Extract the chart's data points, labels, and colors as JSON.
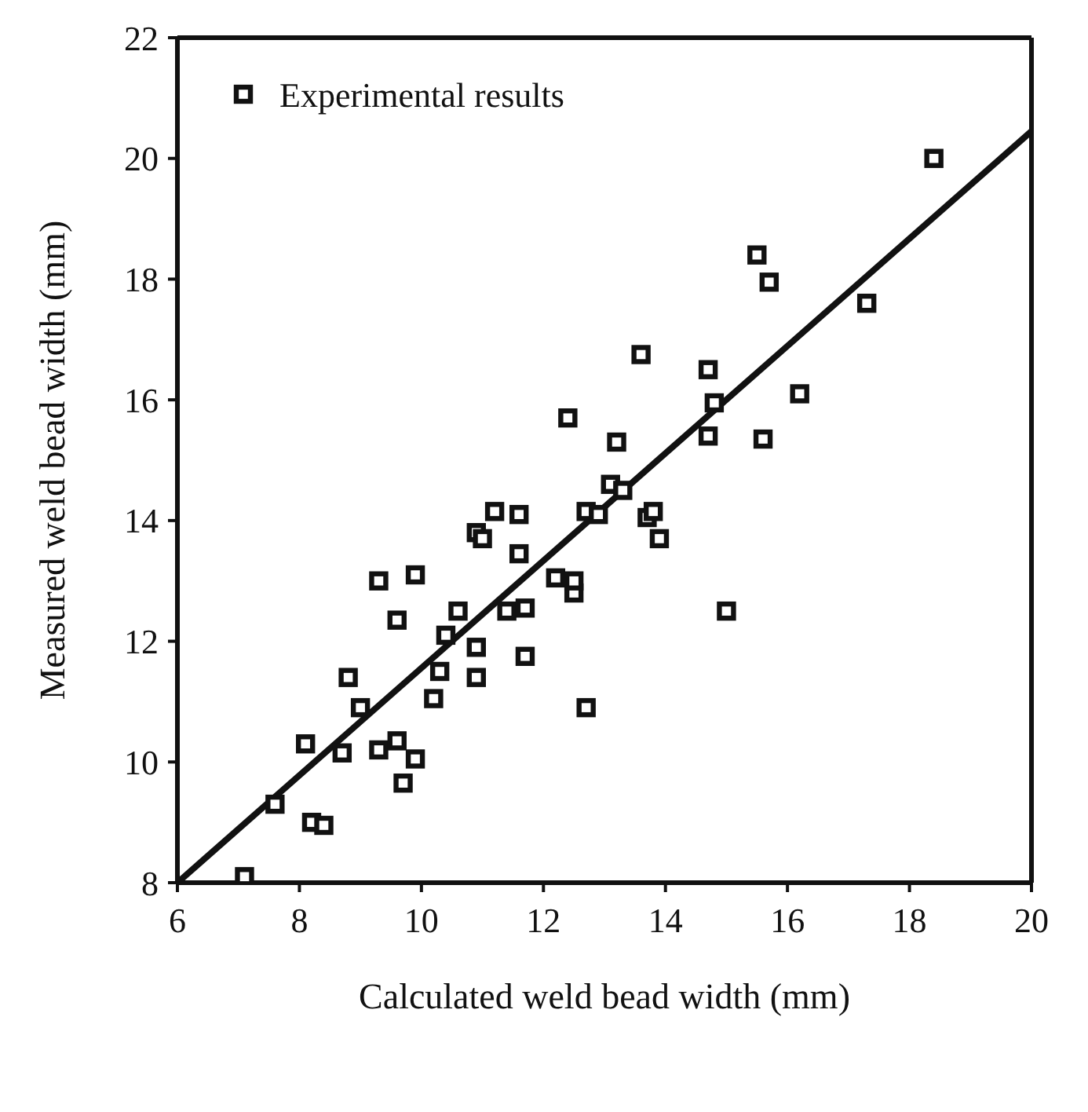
{
  "chart_data": {
    "type": "scatter",
    "xlabel": "Calculated weld bead width (mm)",
    "ylabel": "Measured weld bead width (mm)",
    "xlim": [
      6,
      20
    ],
    "xticks": [
      6,
      8,
      10,
      12,
      14,
      16,
      18,
      20
    ],
    "ylim": [
      8,
      22
    ],
    "yticks": [
      8,
      10,
      12,
      14,
      16,
      18,
      20,
      22
    ],
    "grid": false,
    "legend": "top left",
    "series": [
      {
        "name": "Experimental results",
        "marker": "square",
        "color": "#111111",
        "x": [
          7.1,
          7.6,
          8.2,
          8.4,
          8.1,
          8.7,
          8.8,
          9.0,
          9.3,
          9.3,
          9.6,
          9.6,
          9.7,
          9.9,
          9.9,
          10.2,
          10.3,
          10.4,
          10.6,
          10.9,
          10.9,
          10.9,
          11.0,
          11.2,
          11.4,
          11.6,
          11.6,
          11.7,
          11.7,
          12.2,
          12.4,
          12.5,
          12.5,
          12.7,
          12.7,
          12.9,
          13.1,
          13.2,
          13.3,
          13.6,
          13.7,
          13.8,
          13.9,
          14.7,
          14.7,
          14.8,
          15.0,
          15.5,
          15.7,
          15.6,
          16.2,
          17.3,
          18.4
        ],
        "values": [
          8.1,
          9.3,
          9.0,
          8.95,
          10.3,
          10.15,
          11.4,
          10.9,
          10.2,
          13.0,
          12.35,
          10.35,
          9.65,
          10.05,
          13.1,
          11.05,
          11.5,
          12.1,
          12.5,
          11.4,
          11.9,
          13.8,
          13.7,
          14.15,
          12.5,
          14.1,
          13.45,
          11.75,
          12.55,
          13.05,
          15.7,
          12.8,
          13.0,
          10.9,
          14.15,
          14.1,
          14.6,
          15.3,
          14.5,
          16.75,
          14.05,
          14.15,
          13.7,
          16.5,
          15.4,
          15.95,
          12.5,
          18.4,
          17.95,
          15.35,
          16.1,
          17.6,
          20.0
        ]
      },
      {
        "type": "line",
        "marker": "none",
        "color": "#111111",
        "x": [
          6,
          20
        ],
        "values": [
          8,
          20.45
        ]
      }
    ]
  }
}
